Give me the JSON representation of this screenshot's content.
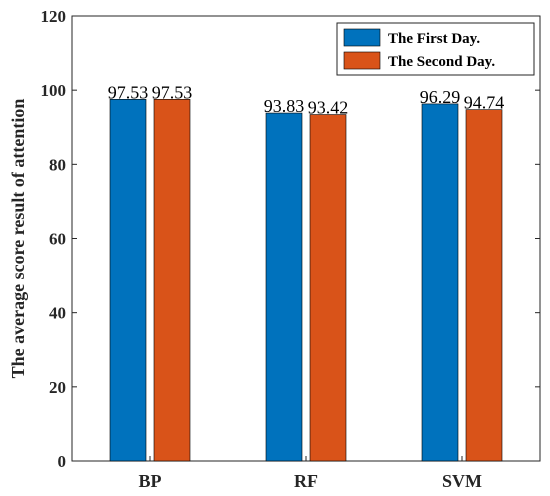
{
  "chart_data": {
    "type": "bar",
    "categories": [
      "BP",
      "RF",
      "SVM"
    ],
    "series": [
      {
        "name": "The First Day.",
        "values": [
          97.53,
          93.83,
          96.29
        ],
        "labels": [
          "97.53",
          "93.83",
          "96.29"
        ],
        "color": "#0072BD"
      },
      {
        "name": "The Second Day.",
        "values": [
          97.53,
          93.42,
          94.74
        ],
        "labels": [
          "97.53",
          "93.42",
          "94.74"
        ],
        "color": "#D95319"
      }
    ],
    "title": "",
    "xlabel": "",
    "ylabel": "The average score result of attention",
    "ylim": [
      0,
      120
    ],
    "yticks": [
      0,
      20,
      40,
      60,
      80,
      100,
      120
    ],
    "ytick_labels": [
      "0",
      "20",
      "40",
      "60",
      "80",
      "100",
      "120"
    ],
    "grid": false,
    "legend_position": "top-right"
  }
}
